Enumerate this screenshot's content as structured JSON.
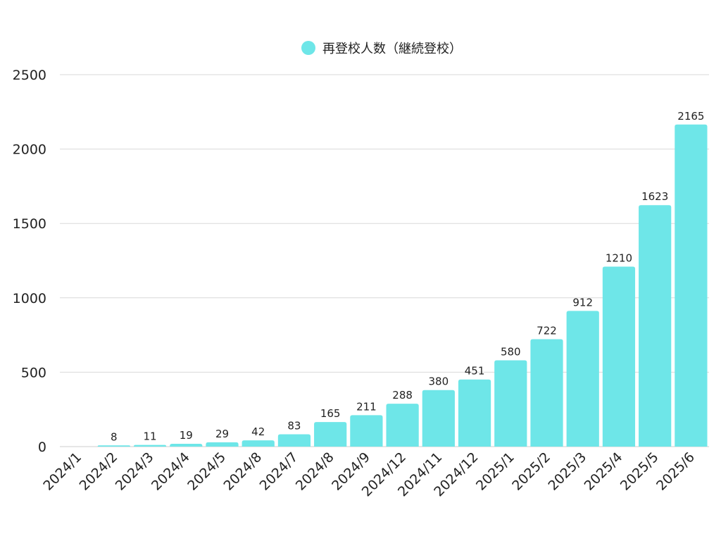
{
  "chart_data": {
    "type": "bar",
    "title": "",
    "xlabel": "",
    "ylabel": "",
    "legend": {
      "position": "top",
      "entries": [
        "再登校人数（継続登校）"
      ]
    },
    "grid": true,
    "ylim": [
      0,
      2500
    ],
    "yticks": [
      "0",
      "500",
      "1000",
      "1500",
      "2000",
      "2500"
    ],
    "categories": [
      "2024/1",
      "2024/2",
      "2024/3",
      "2024/4",
      "2024/5",
      "2024/8",
      "2024/7",
      "2024/8",
      "2024/9",
      "2024/12",
      "2024/11",
      "2024/12",
      "2025/1",
      "2025/2",
      "2025/3",
      "2025/4",
      "2025/5",
      "2025/6"
    ],
    "series": [
      {
        "name": "再登校人数（継続登校）",
        "color": "#6ee6e8",
        "values": [
          0,
          8,
          11,
          19,
          29,
          42,
          83,
          165,
          211,
          288,
          380,
          451,
          580,
          722,
          912,
          1210,
          1623,
          2165
        ]
      }
    ]
  }
}
